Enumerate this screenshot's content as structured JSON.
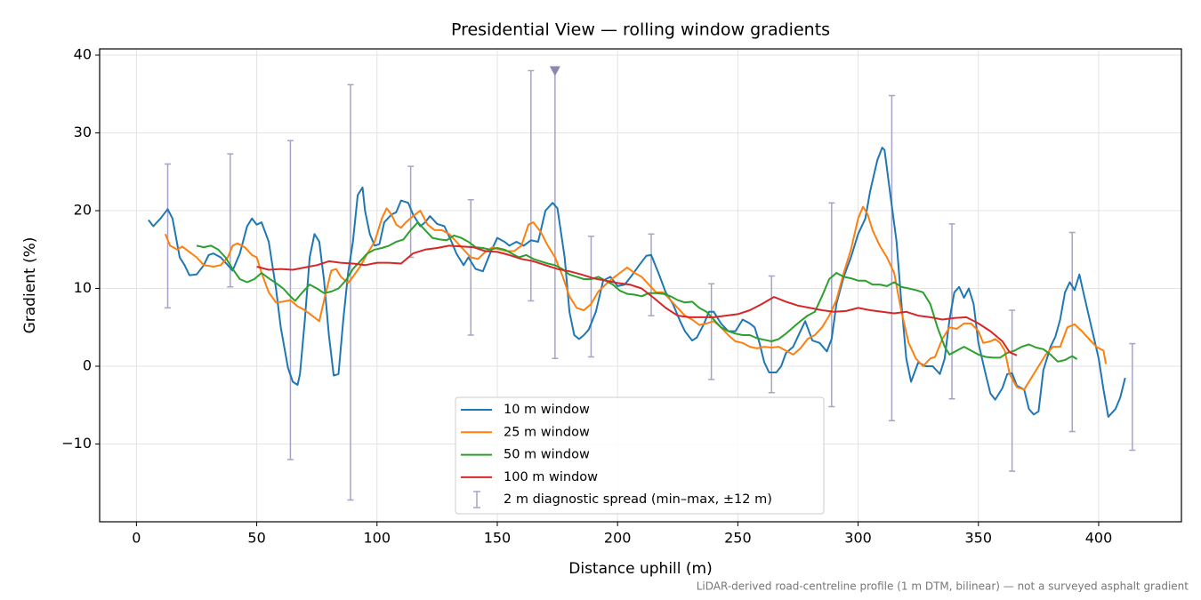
{
  "chart_data": {
    "type": "line",
    "title": "Presidential View — rolling window gradients",
    "xlabel": "Distance uphill (m)",
    "ylabel": "Gradient (%)",
    "note": "LiDAR-derived road-centreline profile (1 m DTM, bilinear) — not a surveyed asphalt gradient",
    "xlim": [
      -15.3,
      434.4
    ],
    "ylim": [
      -20,
      40.8
    ],
    "xticks": [
      0,
      50,
      100,
      150,
      200,
      250,
      300,
      350,
      400
    ],
    "yticks": [
      {
        "value": -10,
        "label": "−10"
      },
      0,
      10,
      20,
      30,
      40
    ],
    "grid": true,
    "legend": "lower center",
    "series": [
      {
        "name": "10 m window",
        "color": "#1f77b4",
        "x": [
          5,
          7,
          10,
          13,
          15,
          18,
          20,
          22,
          25,
          28,
          30,
          32,
          35,
          38,
          40,
          43,
          46,
          48,
          50,
          52,
          55,
          58,
          60,
          63,
          65,
          67,
          68,
          70,
          72,
          74,
          76,
          78,
          80,
          82,
          84,
          86,
          88,
          90,
          92,
          94,
          95,
          97,
          99,
          101,
          103,
          106,
          108,
          110,
          113,
          115,
          118,
          120,
          122,
          125,
          128,
          131,
          133,
          136,
          138,
          141,
          144,
          147,
          150,
          153,
          155,
          158,
          161,
          164,
          167,
          170,
          173,
          175,
          178,
          180,
          182,
          184,
          186,
          188,
          191,
          194,
          197,
          200,
          203,
          206,
          209,
          212,
          214,
          217,
          220,
          223,
          226,
          228,
          231,
          233,
          236,
          238,
          240,
          243,
          246,
          249,
          252,
          255,
          257,
          259,
          261,
          263,
          266,
          268,
          270,
          273,
          276,
          278,
          281,
          284,
          287,
          289,
          291,
          294,
          297,
          300,
          303,
          305,
          308,
          310,
          311,
          313,
          316,
          318,
          320,
          322,
          325,
          328,
          331,
          334,
          336,
          338,
          340,
          342,
          344,
          346,
          348,
          350,
          353,
          355,
          357,
          360,
          362,
          364,
          366,
          369,
          371,
          373,
          375,
          377,
          380,
          382,
          384,
          386,
          388,
          390,
          392,
          394,
          397,
          400,
          402,
          404,
          407,
          409,
          411
        ],
        "values": [
          18.8,
          18,
          19,
          20.2,
          19,
          14,
          13,
          11.7,
          11.8,
          13,
          14.3,
          14.5,
          14,
          13,
          12.3,
          14.5,
          18,
          19,
          18.2,
          18.5,
          16,
          10,
          5,
          -0.2,
          -2,
          -2.4,
          -1,
          6,
          14,
          17,
          16,
          11,
          4,
          -1.2,
          -1,
          6,
          12,
          16,
          22,
          23,
          20,
          17,
          15.5,
          15.7,
          18.5,
          19.5,
          19.8,
          21.3,
          21,
          19.5,
          18,
          18.5,
          19.3,
          18.3,
          18,
          16,
          14.5,
          13,
          14,
          12.5,
          12.2,
          14.5,
          16.5,
          16,
          15.5,
          16,
          15.5,
          16.2,
          16,
          20,
          21,
          20.3,
          14,
          7,
          4,
          3.5,
          4,
          4.7,
          7,
          11,
          11.5,
          10.3,
          10.5,
          11.7,
          13,
          14.2,
          14.3,
          12,
          9.5,
          8,
          5.8,
          4.5,
          3.3,
          3.7,
          5.5,
          7,
          7,
          5.5,
          4.5,
          4.5,
          6,
          5.5,
          5,
          3,
          0.5,
          -0.8,
          -0.8,
          0,
          1.7,
          2.5,
          4.5,
          5.8,
          3.3,
          3,
          1.9,
          3.5,
          8,
          11.5,
          14,
          17,
          19,
          22.5,
          26.5,
          28.1,
          27.8,
          23,
          16,
          8,
          1,
          -2,
          0.5,
          0,
          0,
          -1,
          1,
          6,
          9.5,
          10.2,
          8.8,
          10,
          8,
          3,
          -1,
          -3.5,
          -4.3,
          -2.8,
          -1,
          -0.9,
          -2.5,
          -3,
          -5.5,
          -6.2,
          -5.8,
          -0.5,
          2.5,
          3.8,
          6,
          9.5,
          10.8,
          9.8,
          11.8,
          9,
          5,
          1,
          -3,
          -6.5,
          -5.5,
          -4,
          -1.5
        ]
      },
      {
        "name": "25 m window",
        "color": "#ff7f0e",
        "x": [
          12,
          14,
          17,
          19,
          22,
          25,
          28,
          32,
          35,
          38,
          40,
          42,
          45,
          48,
          50,
          52,
          55,
          58,
          61,
          64,
          67,
          70,
          73,
          76,
          78,
          81,
          83,
          85,
          88,
          90,
          93,
          96,
          99,
          102,
          104,
          106,
          108,
          110,
          112,
          115,
          118,
          121,
          124,
          127,
          130,
          133,
          136,
          139,
          142,
          145,
          148,
          151,
          154,
          157,
          160,
          163,
          165,
          168,
          171,
          174,
          177,
          180,
          183,
          186,
          189,
          192,
          195,
          198,
          201,
          204,
          207,
          210,
          213,
          216,
          219,
          222,
          225,
          228,
          231,
          234,
          237,
          240,
          243,
          246,
          249,
          252,
          255,
          258,
          261,
          264,
          267,
          270,
          273,
          276,
          279,
          282,
          285,
          288,
          291,
          294,
          297,
          300,
          302,
          304,
          306,
          309,
          312,
          315,
          318,
          321,
          324,
          327,
          330,
          332,
          335,
          338,
          341,
          344,
          347,
          350,
          352,
          355,
          357,
          359,
          361,
          363,
          366,
          369,
          372,
          375,
          378,
          381,
          384,
          387,
          390,
          393,
          396,
          399,
          402,
          403
        ],
        "values": [
          17,
          15.5,
          15,
          15.4,
          14.7,
          14,
          13,
          12.8,
          13,
          14,
          15.5,
          15.8,
          15.3,
          14.3,
          14,
          12,
          9.5,
          8.2,
          8.3,
          8.5,
          7.7,
          7.2,
          6.5,
          5.8,
          8.5,
          12.3,
          12.5,
          11.5,
          10.7,
          11.5,
          12.8,
          14.5,
          16,
          19,
          20.3,
          19.5,
          18.2,
          17.8,
          18.5,
          19.3,
          20,
          18.2,
          17.5,
          17.5,
          17,
          16,
          15,
          14,
          13.8,
          14.7,
          15.3,
          15,
          14.8,
          14.8,
          15.5,
          18.2,
          18.5,
          17.3,
          15.5,
          14,
          11.7,
          9,
          7.5,
          7.2,
          8,
          9.6,
          10.5,
          11.3,
          12,
          12.7,
          12,
          11.5,
          10.5,
          9.5,
          9.5,
          8.5,
          7.5,
          6.5,
          6,
          5.3,
          5.5,
          5.8,
          5,
          4,
          3.2,
          3,
          2.5,
          2.3,
          2.5,
          2.4,
          2.5,
          2,
          1.5,
          2.3,
          3.5,
          4,
          5,
          6.5,
          8.5,
          12,
          15,
          19,
          20.5,
          19.5,
          17.5,
          15.5,
          14,
          12,
          7,
          3,
          1,
          0,
          1,
          1.2,
          3.5,
          5,
          4.8,
          5.5,
          5.5,
          4.5,
          3,
          3.2,
          3.5,
          3,
          2,
          -1,
          -2.7,
          -3,
          -1.5,
          0,
          1.5,
          2.5,
          2.5,
          5,
          5.4,
          4.5,
          3.5,
          2.5,
          2,
          0.3
        ]
      },
      {
        "name": "50 m window",
        "color": "#2ca02c",
        "x": [
          25,
          28,
          31,
          34,
          37,
          40,
          43,
          46,
          49,
          52,
          55,
          58,
          61,
          64,
          66,
          69,
          72,
          75,
          78,
          81,
          84,
          87,
          90,
          93,
          96,
          99,
          102,
          105,
          108,
          111,
          114,
          117,
          120,
          123,
          126,
          129,
          132,
          135,
          138,
          141,
          144,
          147,
          150,
          153,
          156,
          159,
          162,
          165,
          168,
          171,
          174,
          177,
          180,
          183,
          186,
          189,
          192,
          195,
          198,
          201,
          204,
          207,
          210,
          213,
          216,
          219,
          222,
          225,
          228,
          231,
          234,
          237,
          240,
          243,
          246,
          249,
          252,
          255,
          258,
          261,
          264,
          267,
          270,
          273,
          276,
          279,
          282,
          285,
          288,
          291,
          294,
          297,
          300,
          303,
          306,
          309,
          312,
          315,
          318,
          321,
          324,
          327,
          330,
          333,
          336,
          338,
          341,
          344,
          347,
          350,
          353,
          356,
          359,
          362,
          365,
          368,
          371,
          374,
          377,
          380,
          383,
          386,
          389,
          391
        ],
        "values": [
          15.5,
          15.3,
          15.5,
          15,
          14,
          12.5,
          11.2,
          10.8,
          11.2,
          12,
          11.3,
          10.7,
          10,
          9,
          8.4,
          9.5,
          10.5,
          10,
          9.4,
          9.6,
          10,
          11,
          12.5,
          13.5,
          14.5,
          15,
          15.2,
          15.5,
          16,
          16.3,
          17.5,
          18.5,
          17.5,
          16.5,
          16.3,
          16.2,
          16.8,
          16.5,
          16,
          15.3,
          15.2,
          15,
          15.2,
          15,
          14.5,
          14,
          14.3,
          13.8,
          13.5,
          13.2,
          13,
          12.5,
          11.8,
          11.5,
          11.2,
          11.2,
          11.5,
          11,
          10.5,
          9.7,
          9.3,
          9.2,
          9,
          9.4,
          9.4,
          9.3,
          9,
          8.5,
          8.2,
          8.3,
          7.5,
          7,
          6,
          5,
          4.5,
          4.2,
          4,
          4,
          3.6,
          3.4,
          3.2,
          3.5,
          4.2,
          5,
          5.8,
          6.5,
          7,
          9,
          11.2,
          12,
          11.5,
          11.3,
          11,
          11,
          10.5,
          10.5,
          10.3,
          10.8,
          10.2,
          10,
          9.8,
          9.5,
          8,
          5,
          2.5,
          1.5,
          2,
          2.5,
          2,
          1.5,
          1.2,
          1.1,
          1.1,
          1.7,
          2,
          2.5,
          2.8,
          2.4,
          2.2,
          1.5,
          0.6,
          0.8,
          1.3,
          0.9
        ]
      },
      {
        "name": "100 m window",
        "color": "#d62728",
        "x": [
          50,
          55,
          60,
          65,
          70,
          75,
          80,
          85,
          90,
          95,
          100,
          105,
          110,
          115,
          120,
          125,
          130,
          135,
          140,
          145,
          150,
          155,
          160,
          165,
          170,
          175,
          180,
          185,
          190,
          195,
          200,
          205,
          210,
          215,
          220,
          225,
          230,
          235,
          240,
          245,
          250,
          255,
          260,
          265,
          270,
          275,
          280,
          285,
          290,
          295,
          300,
          305,
          310,
          315,
          320,
          325,
          330,
          335,
          340,
          345,
          350,
          355,
          360,
          363,
          366
        ],
        "values": [
          12.8,
          12.4,
          12.5,
          12.4,
          12.7,
          13,
          13.5,
          13.3,
          13.2,
          13,
          13.3,
          13.3,
          13.2,
          14.5,
          15,
          15.2,
          15.5,
          15.4,
          15.3,
          14.8,
          14.7,
          14.3,
          13.8,
          13.5,
          13,
          12.5,
          12.2,
          11.8,
          11.3,
          11,
          10.7,
          10.5,
          10,
          8.8,
          7.5,
          6.5,
          6.3,
          6.3,
          6.3,
          6.5,
          6.7,
          7.2,
          8,
          8.9,
          8.3,
          7.8,
          7.5,
          7.2,
          7,
          7.1,
          7.5,
          7.2,
          7,
          6.8,
          7,
          6.5,
          6.3,
          6,
          6.2,
          6.3,
          5.5,
          4.5,
          3.2,
          1.8,
          1.4
        ]
      }
    ],
    "errorbars": {
      "name": "2 m diagnostic spread (min–max, ±12 m)",
      "color": "#a7a3c6",
      "x": [
        13,
        39,
        64,
        89,
        114,
        139,
        164,
        174,
        189,
        214,
        239,
        264,
        289,
        314,
        339,
        364,
        389,
        414
      ],
      "low": [
        7.5,
        10.2,
        -12,
        -17.2,
        14,
        4,
        8.4,
        1,
        1.2,
        6.5,
        -1.7,
        -3.4,
        -5.2,
        -7,
        -4.2,
        -13.5,
        -8.4,
        -10.8
      ],
      "high": [
        26,
        27.3,
        29,
        36.2,
        25.7,
        21.4,
        38,
        38,
        16.7,
        17,
        10.6,
        11.6,
        21,
        34.8,
        18.3,
        7.2,
        17.2,
        2.9
      ]
    },
    "marker": {
      "x": 174,
      "y": 38,
      "color": "#8c87b0"
    }
  }
}
